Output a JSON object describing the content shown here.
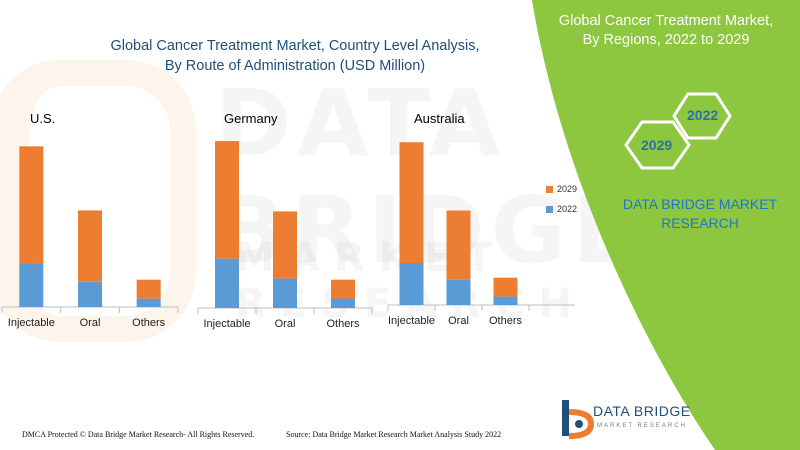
{
  "title_lines": [
    "Global Cancer Treatment Market, Country Level Analysis,",
    "By Route of Administration (USD Million)"
  ],
  "side_title_lines": [
    "Global Cancer Treatment Market,",
    "By Regions, 2022 to 2029"
  ],
  "badges": {
    "a": "2029",
    "b": "2022"
  },
  "brand_lines": [
    "DATA BRIDGE MARKET",
    "RESEARCH"
  ],
  "footer": {
    "left": "DMCA Protected © Data Bridge Market Research- All Rights Reserved.",
    "right": "Source: Data Bridge Market Research Market Analysis Study 2022"
  },
  "logo": {
    "name": "DATA BRIDGE",
    "tagline": "MARKET RESEARCH"
  },
  "watermark": {
    "top": "DATA BRIDGE",
    "bottom": "MARKET RESEARCH"
  },
  "colors": {
    "y2029": "#ED7D31",
    "y2022": "#5B9BD5",
    "green": "#8DC63F",
    "title": "#1F4E79",
    "brand": "#1F77C8"
  },
  "chart_data": [
    {
      "type": "bar",
      "stacked": true,
      "title": "U.S.",
      "categories": [
        "Injectable",
        "Oral",
        "Others"
      ],
      "series": [
        {
          "name": "2022",
          "values": [
            41,
            24,
            8
          ]
        },
        {
          "name": "2029",
          "values": [
            112,
            68,
            18
          ]
        }
      ],
      "ylim": [
        0,
        160
      ],
      "grid": false,
      "legend": "right"
    },
    {
      "type": "bar",
      "stacked": true,
      "title": "Germany",
      "categories": [
        "Injectable",
        "Oral",
        "Others"
      ],
      "series": [
        {
          "name": "2022",
          "values": [
            47,
            28,
            9
          ]
        },
        {
          "name": "2029",
          "values": [
            112,
            64,
            18
          ]
        }
      ],
      "ylim": [
        0,
        160
      ],
      "grid": false,
      "legend": "right"
    },
    {
      "type": "bar",
      "stacked": true,
      "title": "Australia",
      "categories": [
        "Injectable",
        "Oral",
        "Others"
      ],
      "series": [
        {
          "name": "2022",
          "values": [
            40,
            24,
            8
          ]
        },
        {
          "name": "2029",
          "values": [
            115,
            66,
            18
          ]
        }
      ],
      "ylim": [
        0,
        160
      ],
      "grid": false,
      "legend": "right"
    }
  ]
}
